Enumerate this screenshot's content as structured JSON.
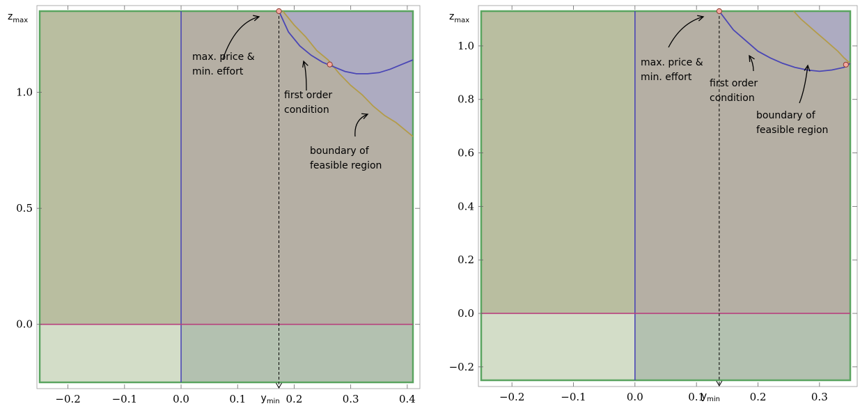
{
  "chart_data": [
    {
      "type": "line",
      "xlim": [
        -0.25,
        0.41
      ],
      "ylim": [
        -0.25,
        1.35
      ],
      "xticks": [
        -0.2,
        -0.1,
        0.0,
        0.1,
        0.2,
        0.3,
        0.4
      ],
      "xtick_labels": [
        "−0.2",
        "−0.1",
        "0.0",
        "0.1",
        "0.2",
        "0.3",
        "0.4"
      ],
      "yticks": [
        0.0,
        0.5,
        1.0
      ],
      "ytick_labels": [
        "0.0",
        "0.5",
        "1.0"
      ],
      "ylabel_main": "z",
      "ylabel_sub": "max",
      "xlabel_main": "y",
      "xlabel_sub": "min",
      "y_min": 0.173,
      "z_max": 1.35,
      "colors": {
        "first_order_condition": "#4a46b5",
        "feasible_boundary": "#b39c49",
        "zero_line": "#b7407d",
        "frame": "#5aa460",
        "marker_fill": "#f4a9a0",
        "marker_edge": "#8b3a30",
        "region_top_left": "#b9bea0",
        "region_top_right": "#b5afa4",
        "region_bottom_left": "#d3ddc8",
        "region_bottom_right": "#b3c1b0",
        "region_feasible": "#adabc1"
      },
      "first_order_condition": {
        "x": [
          0.173,
          0.19,
          0.21,
          0.23,
          0.25,
          0.27,
          0.29,
          0.31,
          0.33,
          0.35,
          0.37,
          0.39,
          0.41
        ],
        "y": [
          1.35,
          1.26,
          1.2,
          1.16,
          1.13,
          1.11,
          1.09,
          1.08,
          1.08,
          1.085,
          1.1,
          1.12,
          1.14
        ]
      },
      "feasible_boundary": {
        "x": [
          0.18,
          0.2,
          0.22,
          0.24,
          0.26,
          0.28,
          0.3,
          0.32,
          0.34,
          0.36,
          0.38,
          0.41
        ],
        "y": [
          1.35,
          1.29,
          1.24,
          1.18,
          1.14,
          1.08,
          1.03,
          0.99,
          0.94,
          0.9,
          0.87,
          0.81
        ]
      },
      "markers": [
        {
          "x": 0.173,
          "y": 1.35
        },
        {
          "x": 0.263,
          "y": 1.12
        }
      ],
      "annotations": [
        {
          "lines": [
            "max. price &",
            "min. effort"
          ]
        },
        {
          "lines": [
            "first order",
            "condition"
          ]
        },
        {
          "lines": [
            "boundary of",
            "feasible region"
          ]
        }
      ]
    },
    {
      "type": "line",
      "xlim": [
        -0.25,
        0.35
      ],
      "ylim": [
        -0.25,
        1.13
      ],
      "xticks": [
        -0.2,
        -0.1,
        0.0,
        0.1,
        0.2,
        0.3
      ],
      "xtick_labels": [
        "−0.2",
        "−0.1",
        "0.0",
        "0.1",
        "0.2",
        "0.3"
      ],
      "yticks": [
        -0.2,
        0.0,
        0.2,
        0.4,
        0.6,
        0.8,
        1.0
      ],
      "ytick_labels": [
        "−0.2",
        "0.0",
        "0.2",
        "0.4",
        "0.6",
        "0.8",
        "1.0"
      ],
      "ylabel_main": "z",
      "ylabel_sub": "max",
      "xlabel_main": "y",
      "xlabel_sub": "min",
      "y_min": 0.137,
      "z_max": 1.13,
      "first_order_condition": {
        "x": [
          0.137,
          0.16,
          0.18,
          0.2,
          0.22,
          0.24,
          0.26,
          0.28,
          0.3,
          0.32,
          0.34,
          0.35
        ],
        "y": [
          1.13,
          1.06,
          1.02,
          0.98,
          0.955,
          0.935,
          0.92,
          0.91,
          0.905,
          0.91,
          0.92,
          0.935
        ]
      },
      "feasible_boundary": {
        "x": [
          0.258,
          0.27,
          0.28,
          0.29,
          0.3,
          0.31,
          0.32,
          0.33,
          0.34,
          0.35
        ],
        "y": [
          1.13,
          1.1,
          1.08,
          1.06,
          1.04,
          1.02,
          1.0,
          0.98,
          0.955,
          0.935
        ]
      },
      "markers": [
        {
          "x": 0.137,
          "y": 1.13
        },
        {
          "x": 0.343,
          "y": 0.93
        }
      ],
      "annotations": [
        {
          "lines": [
            "max. price &",
            "min. effort"
          ]
        },
        {
          "lines": [
            "first order",
            "condition"
          ]
        },
        {
          "lines": [
            "boundary of",
            "feasible region"
          ]
        }
      ]
    }
  ]
}
